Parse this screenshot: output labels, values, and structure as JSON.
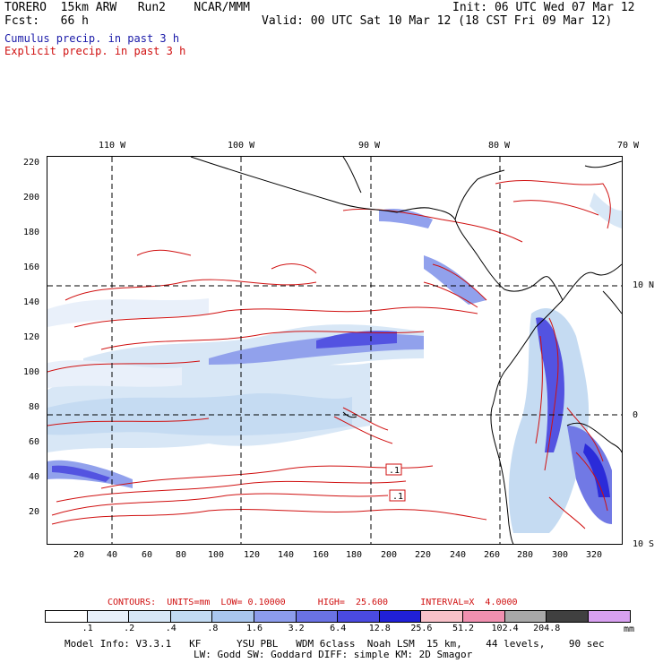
{
  "header": {
    "line1_left": "TORERO  15km ARW   Run2    NCAR/MMM",
    "line1_right": "Init: 06 UTC Wed 07 Mar 12",
    "line2_left": "Fcst:   66 h",
    "line2_right": "Valid: 00 UTC Sat 10 Mar 12 (18 CST Fri 09 Mar 12)",
    "legend_blue": "Cumulus precip. in past 3 h",
    "legend_red": "Explicit precip. in past 3 h"
  },
  "axes": {
    "top_lon": [
      "110 W",
      "100 W",
      "90 W",
      "80 W",
      "70 W"
    ],
    "left_y": [
      "220",
      "200",
      "180",
      "160",
      "140",
      "120",
      "100",
      "80",
      "60",
      "40",
      "20"
    ],
    "bottom_x": [
      "20",
      "40",
      "60",
      "80",
      "100",
      "120",
      "140",
      "160",
      "180",
      "200",
      "220",
      "240",
      "260",
      "280",
      "300",
      "320"
    ],
    "right_lat": [
      "10 N",
      "0",
      "10 S"
    ]
  },
  "map": {
    "box_labels": [
      ".1",
      ".1"
    ]
  },
  "contours_line": {
    "text": "CONTOURS:  UNITS=mm  LOW= 0.10000      HIGH=  25.600      INTERVAL=X  4.0000"
  },
  "colorbar": {
    "colors": [
      "#ffffff",
      "#e8f0fa",
      "#d6e6f6",
      "#c2daf2",
      "#a9c6ee",
      "#8c9cec",
      "#6a72e4",
      "#4a4ae0",
      "#2020d8",
      "#f8c0c8",
      "#f090b0",
      "#a8a8a8",
      "#404040",
      "#d8a0f0"
    ],
    "labels": [
      ".1",
      ".2",
      ".4",
      ".8",
      "1.6",
      "3.2",
      "6.4",
      "12.8",
      "25.6",
      "51.2",
      "102.4",
      "204.8"
    ],
    "unit": "mm"
  },
  "footer": {
    "line1": "Model Info: V3.3.1   KF      YSU PBL   WDM 6class  Noah LSM  15 km,    44 levels,    90 sec",
    "line2": "LW: Godd SW: Goddard DIFF: simple KM: 2D Smagor"
  }
}
